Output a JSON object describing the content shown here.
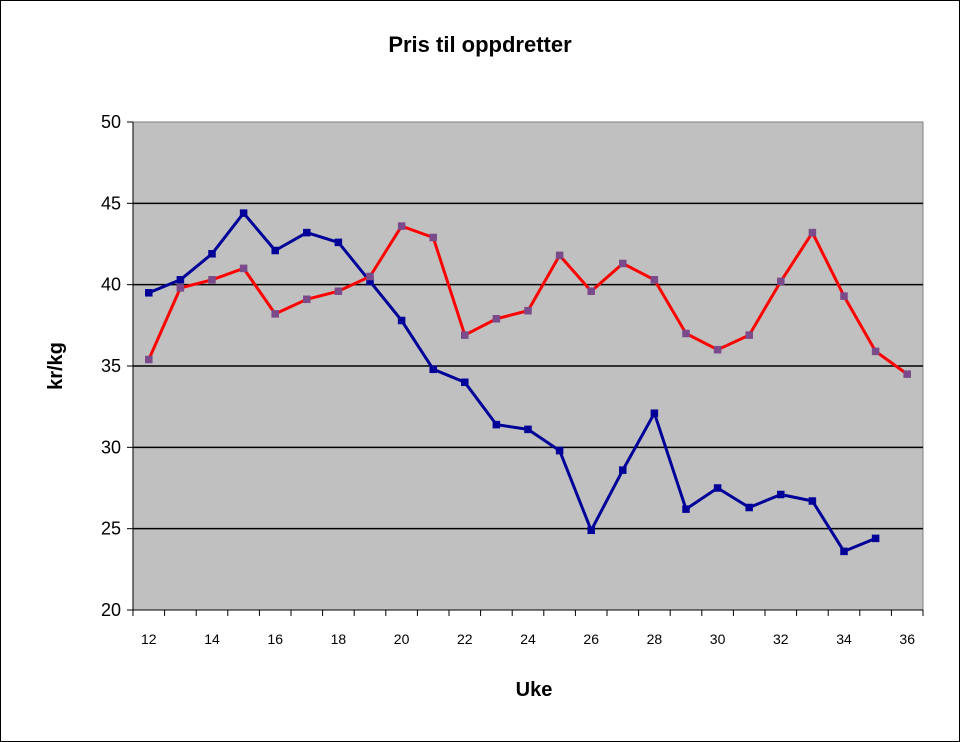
{
  "chart_data": {
    "type": "line",
    "title": "Pris til oppdretter",
    "xlabel": "Uke",
    "ylabel": "kr/kg",
    "xlim": [
      12,
      36
    ],
    "ylim": [
      20,
      50
    ],
    "yticks": [
      20,
      25,
      30,
      35,
      40,
      45,
      50
    ],
    "xticks": [
      12,
      14,
      16,
      18,
      20,
      22,
      24,
      26,
      28,
      30,
      32,
      34,
      36
    ],
    "grid": true,
    "legend": "none",
    "plot_background": "#C0C0C0",
    "series": [
      {
        "color": "#000099",
        "x": [
          12,
          13,
          14,
          15,
          16,
          17,
          18,
          19,
          20,
          21,
          22,
          23,
          24,
          25,
          26,
          27,
          28,
          29,
          30,
          31,
          32,
          33,
          34,
          35
        ],
        "y": [
          39.5,
          40.3,
          41.9,
          44.4,
          42.1,
          43.2,
          42.6,
          40.2,
          37.8,
          34.8,
          34.0,
          31.4,
          31.1,
          29.8,
          24.9,
          28.6,
          32.1,
          26.2,
          27.5,
          26.3,
          27.1,
          26.7,
          23.6,
          24.4
        ]
      },
      {
        "color": "#FF0000",
        "x": [
          12,
          13,
          14,
          15,
          16,
          17,
          18,
          19,
          20,
          21,
          22,
          23,
          24,
          25,
          26,
          27,
          28,
          29,
          30,
          31,
          32,
          33,
          34,
          35,
          36
        ],
        "y": [
          35.4,
          39.8,
          40.3,
          41.0,
          38.2,
          39.1,
          39.6,
          40.5,
          43.6,
          42.9,
          36.9,
          37.9,
          38.4,
          41.8,
          39.6,
          41.3,
          40.3,
          37.0,
          36.0,
          36.9,
          40.2,
          43.2,
          39.3,
          35.9,
          34.5
        ]
      }
    ]
  }
}
